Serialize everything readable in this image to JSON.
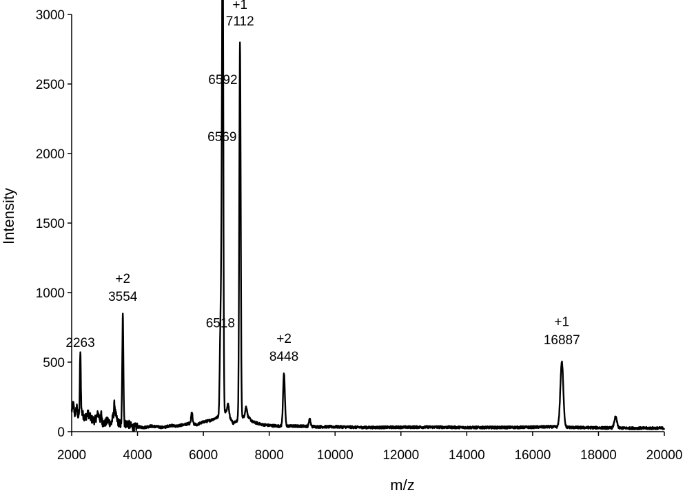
{
  "chart_data": {
    "type": "line",
    "title": "",
    "xlabel": "m/z",
    "ylabel": "Intensity",
    "xlim": [
      2000,
      20000
    ],
    "ylim": [
      0,
      3000
    ],
    "xticks": [
      2000,
      4000,
      6000,
      8000,
      10000,
      12000,
      14000,
      16000,
      18000,
      20000
    ],
    "yticks": [
      0,
      500,
      1000,
      1500,
      2000,
      2500,
      3000
    ],
    "grid": false,
    "legend": "none",
    "line_color": "#000000",
    "baseline": [
      [
        2000,
        150
      ],
      [
        2050,
        200
      ],
      [
        2100,
        120
      ],
      [
        2150,
        180
      ],
      [
        2200,
        110
      ],
      [
        2300,
        140
      ],
      [
        2400,
        100
      ],
      [
        2500,
        130
      ],
      [
        2600,
        90
      ],
      [
        2700,
        80
      ],
      [
        2800,
        130
      ],
      [
        2900,
        70
      ],
      [
        3000,
        60
      ],
      [
        3100,
        80
      ],
      [
        3200,
        55
      ],
      [
        3300,
        150
      ],
      [
        3400,
        70
      ],
      [
        3500,
        50
      ],
      [
        3700,
        60
      ],
      [
        3800,
        40
      ],
      [
        3900,
        30
      ],
      [
        4000,
        35
      ],
      [
        4200,
        30
      ],
      [
        4400,
        40
      ],
      [
        4600,
        35
      ],
      [
        4800,
        30
      ],
      [
        5000,
        45
      ],
      [
        5200,
        40
      ],
      [
        5400,
        50
      ],
      [
        5600,
        60
      ],
      [
        5800,
        50
      ],
      [
        6000,
        70
      ],
      [
        6200,
        80
      ],
      [
        6400,
        100
      ],
      [
        6700,
        150
      ],
      [
        6900,
        60
      ],
      [
        7300,
        120
      ],
      [
        7500,
        70
      ],
      [
        7800,
        50
      ],
      [
        8000,
        45
      ],
      [
        8300,
        40
      ],
      [
        8600,
        40
      ],
      [
        9000,
        40
      ],
      [
        9500,
        35
      ],
      [
        10000,
        35
      ],
      [
        11000,
        30
      ],
      [
        12000,
        32
      ],
      [
        13000,
        33
      ],
      [
        14000,
        30
      ],
      [
        15000,
        30
      ],
      [
        16000,
        32
      ],
      [
        16500,
        35
      ],
      [
        17300,
        30
      ],
      [
        18000,
        28
      ],
      [
        19000,
        25
      ],
      [
        20000,
        25
      ]
    ],
    "peaks": [
      {
        "x": 2263,
        "y": 570,
        "width": 15
      },
      {
        "x": 2900,
        "y": 130,
        "width": 12
      },
      {
        "x": 3300,
        "y": 200,
        "width": 12
      },
      {
        "x": 3554,
        "y": 830,
        "width": 18
      },
      {
        "x": 5650,
        "y": 140,
        "width": 20
      },
      {
        "x": 6518,
        "y": 700,
        "width": 22
      },
      {
        "x": 6569,
        "y": 1950,
        "width": 22
      },
      {
        "x": 6592,
        "y": 2410,
        "width": 18
      },
      {
        "x": 6750,
        "y": 200,
        "width": 25
      },
      {
        "x": 7112,
        "y": 2800,
        "width": 22
      },
      {
        "x": 7300,
        "y": 180,
        "width": 25
      },
      {
        "x": 8448,
        "y": 415,
        "width": 28
      },
      {
        "x": 9230,
        "y": 90,
        "width": 25
      },
      {
        "x": 16887,
        "y": 500,
        "width": 45
      },
      {
        "x": 18520,
        "y": 105,
        "width": 40
      }
    ],
    "annotations": [
      {
        "text": "2263",
        "x": 2263,
        "y": 570
      },
      {
        "text": "+2",
        "x": 3554,
        "y": 1030
      },
      {
        "text": "3554",
        "x": 3554,
        "y": 900
      },
      {
        "text": "6518",
        "x": 6518,
        "y": 710
      },
      {
        "text": "6569",
        "x": 6569,
        "y": 2050
      },
      {
        "text": "6592",
        "x": 6592,
        "y": 2460
      },
      {
        "text": "+1",
        "x": 7112,
        "y": 3000
      },
      {
        "text": "7112",
        "x": 7112,
        "y": 2880
      },
      {
        "text": "+2",
        "x": 8448,
        "y": 600
      },
      {
        "text": "8448",
        "x": 8448,
        "y": 470
      },
      {
        "text": "+1",
        "x": 16887,
        "y": 720
      },
      {
        "text": "16887",
        "x": 16887,
        "y": 590
      }
    ]
  }
}
